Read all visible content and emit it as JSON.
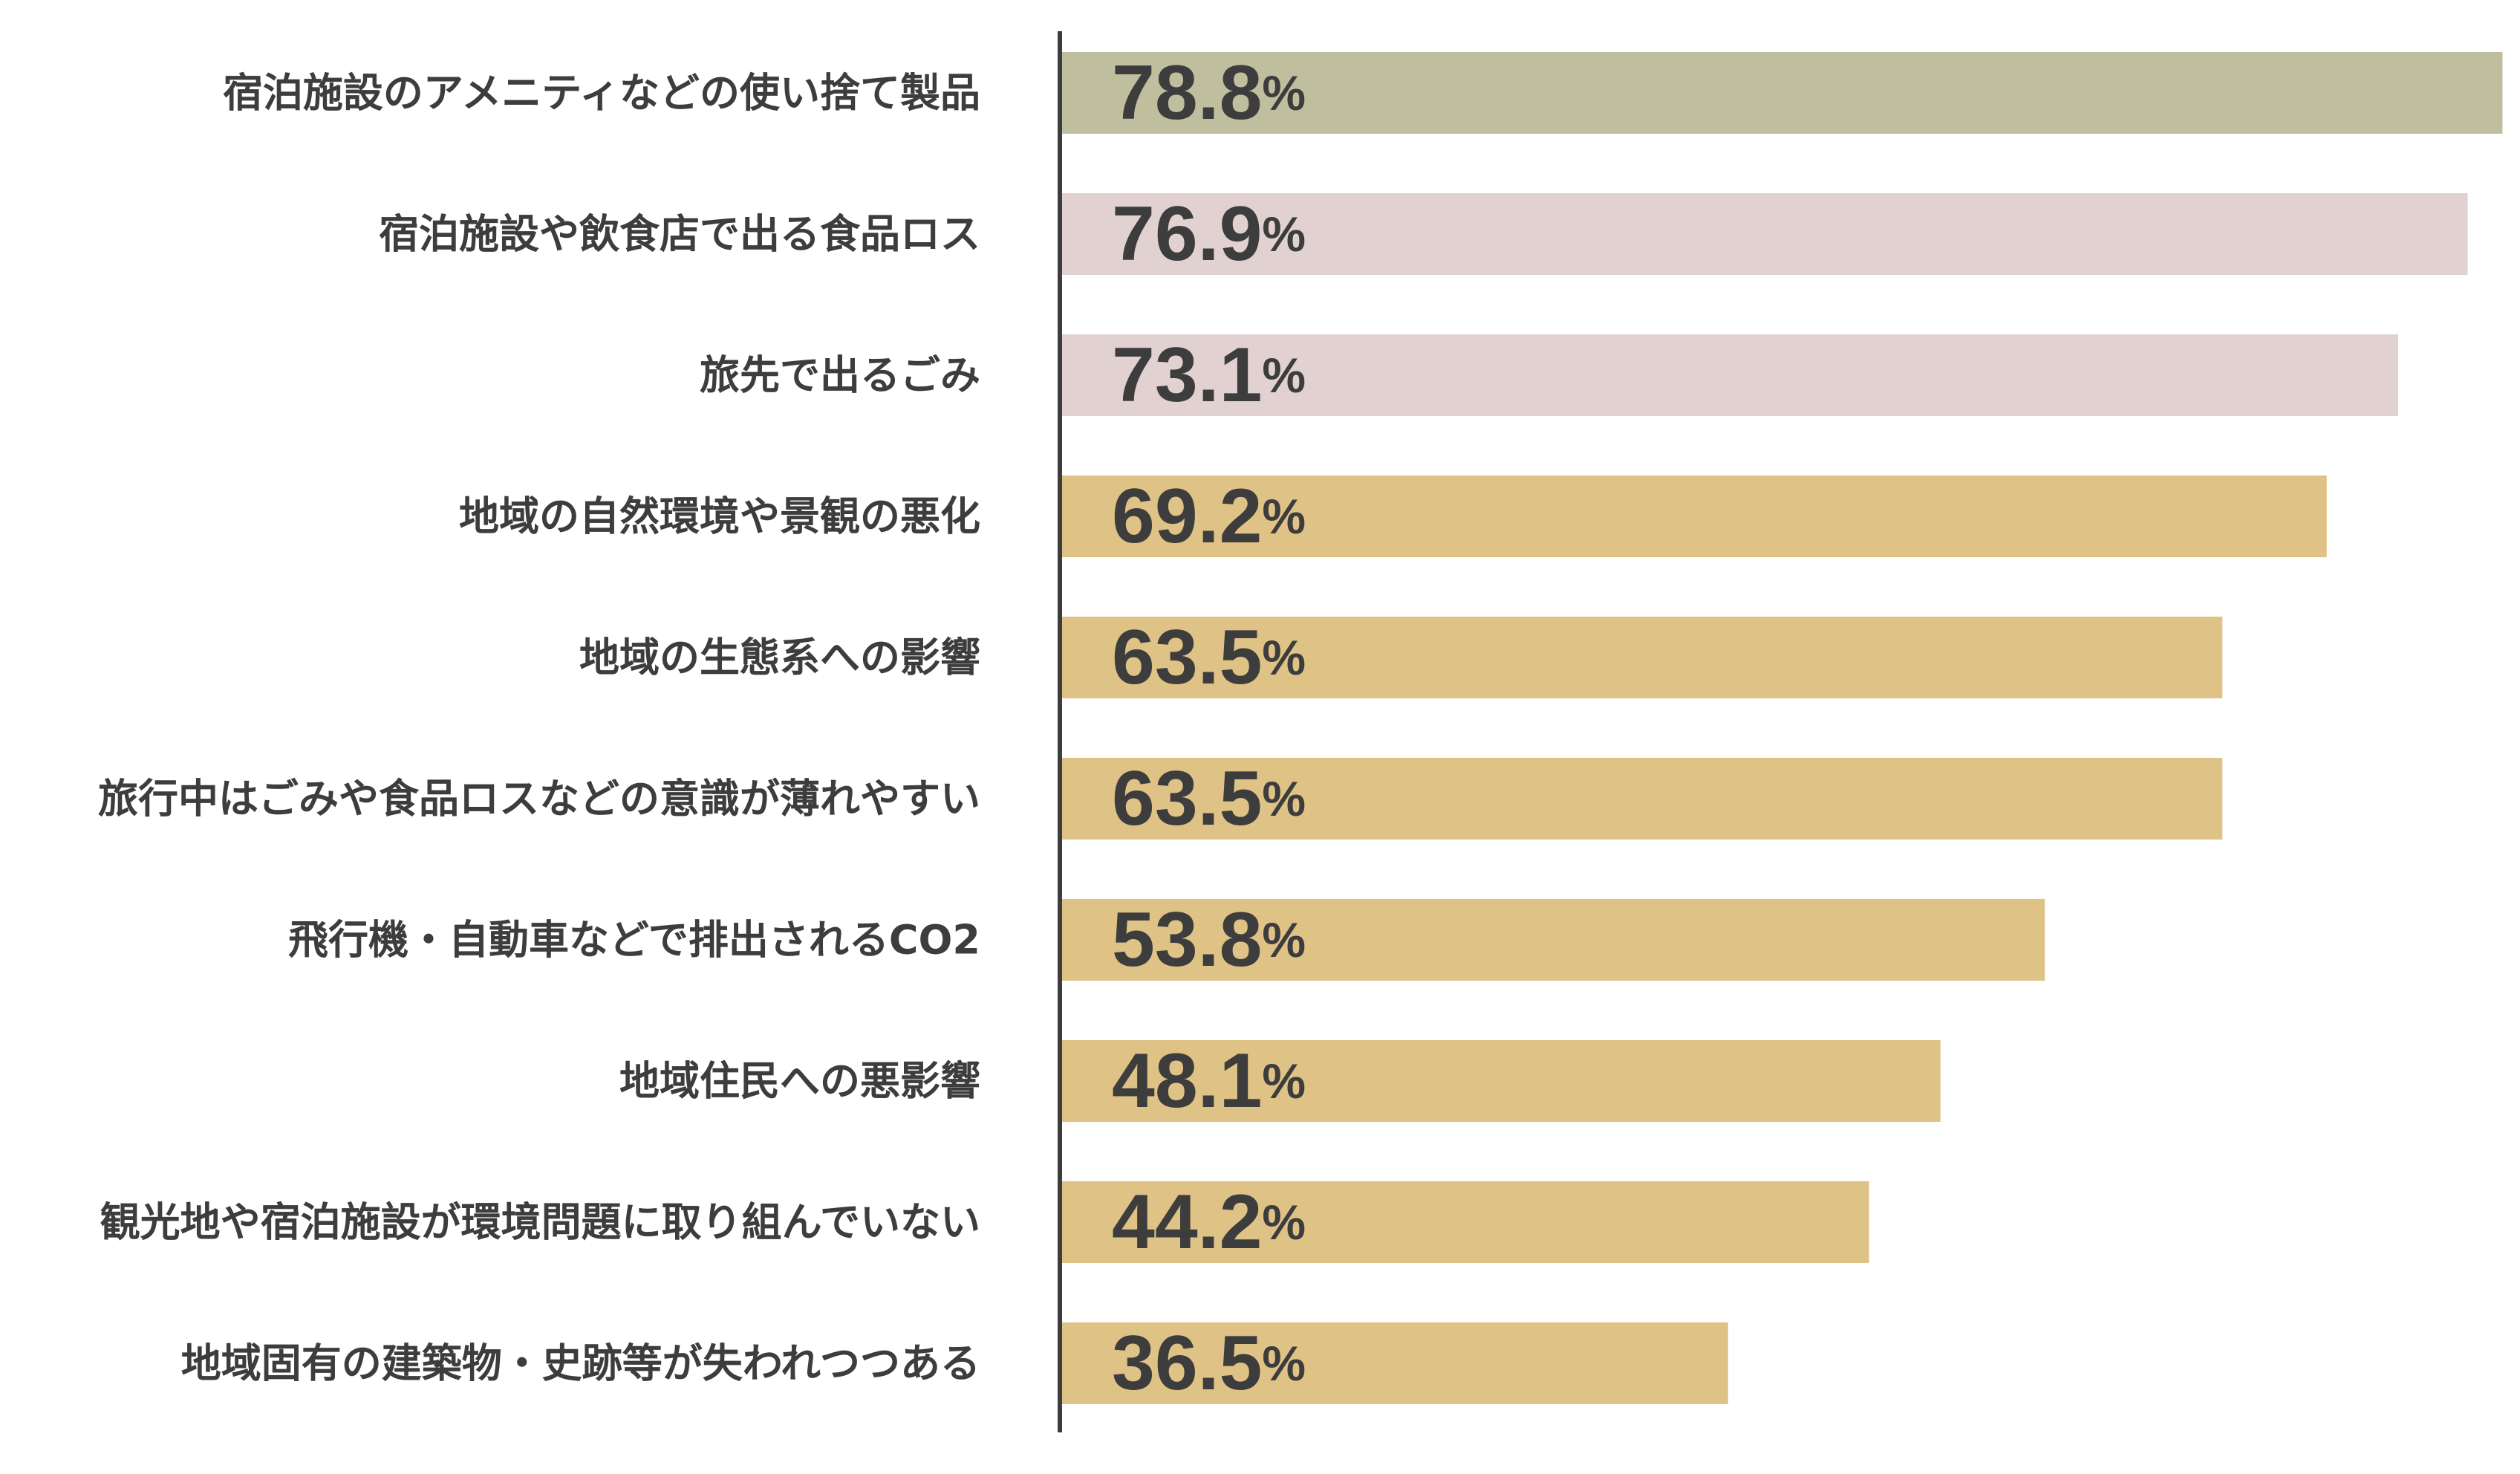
{
  "chart_data": {
    "type": "bar",
    "orientation": "horizontal",
    "title": "",
    "xlabel": "",
    "ylabel": "",
    "xlim": [
      0,
      80
    ],
    "grid": false,
    "legend": "none",
    "value_suffix": "%",
    "categories": [
      "宿泊施設のアメニティなどの使い捨て製品",
      "宿泊施設や飲食店で出る食品ロス",
      "旅先で出るごみ",
      "地域の自然環境や景観の悪化",
      "地域の生態系への影響",
      "旅行中はごみや食品ロスなどの意識が薄れやすい",
      "飛行機・自動車などで排出されるCO2",
      "地域住民への悪影響",
      "観光地や宿泊施設が環境問題に取り組んでいない",
      "地域固有の建築物・史跡等が失われつつある"
    ],
    "values": [
      78.8,
      76.9,
      73.1,
      69.2,
      63.5,
      63.5,
      53.8,
      48.1,
      44.2,
      36.5
    ],
    "value_labels": [
      "78.8",
      "76.9",
      "73.1",
      "69.2",
      "63.5",
      "63.5",
      "53.8",
      "48.1",
      "44.2",
      "36.5"
    ],
    "bar_colors": [
      "#bfbf9f",
      "#e2d1d1",
      "#e2d1d1",
      "#dfc285",
      "#dfc285",
      "#dfc285",
      "#dfc285",
      "#dfc285",
      "#dfc285",
      "#dfc285"
    ],
    "axis_color": "#3d3d3d",
    "text_color": "#3d3d3d"
  }
}
